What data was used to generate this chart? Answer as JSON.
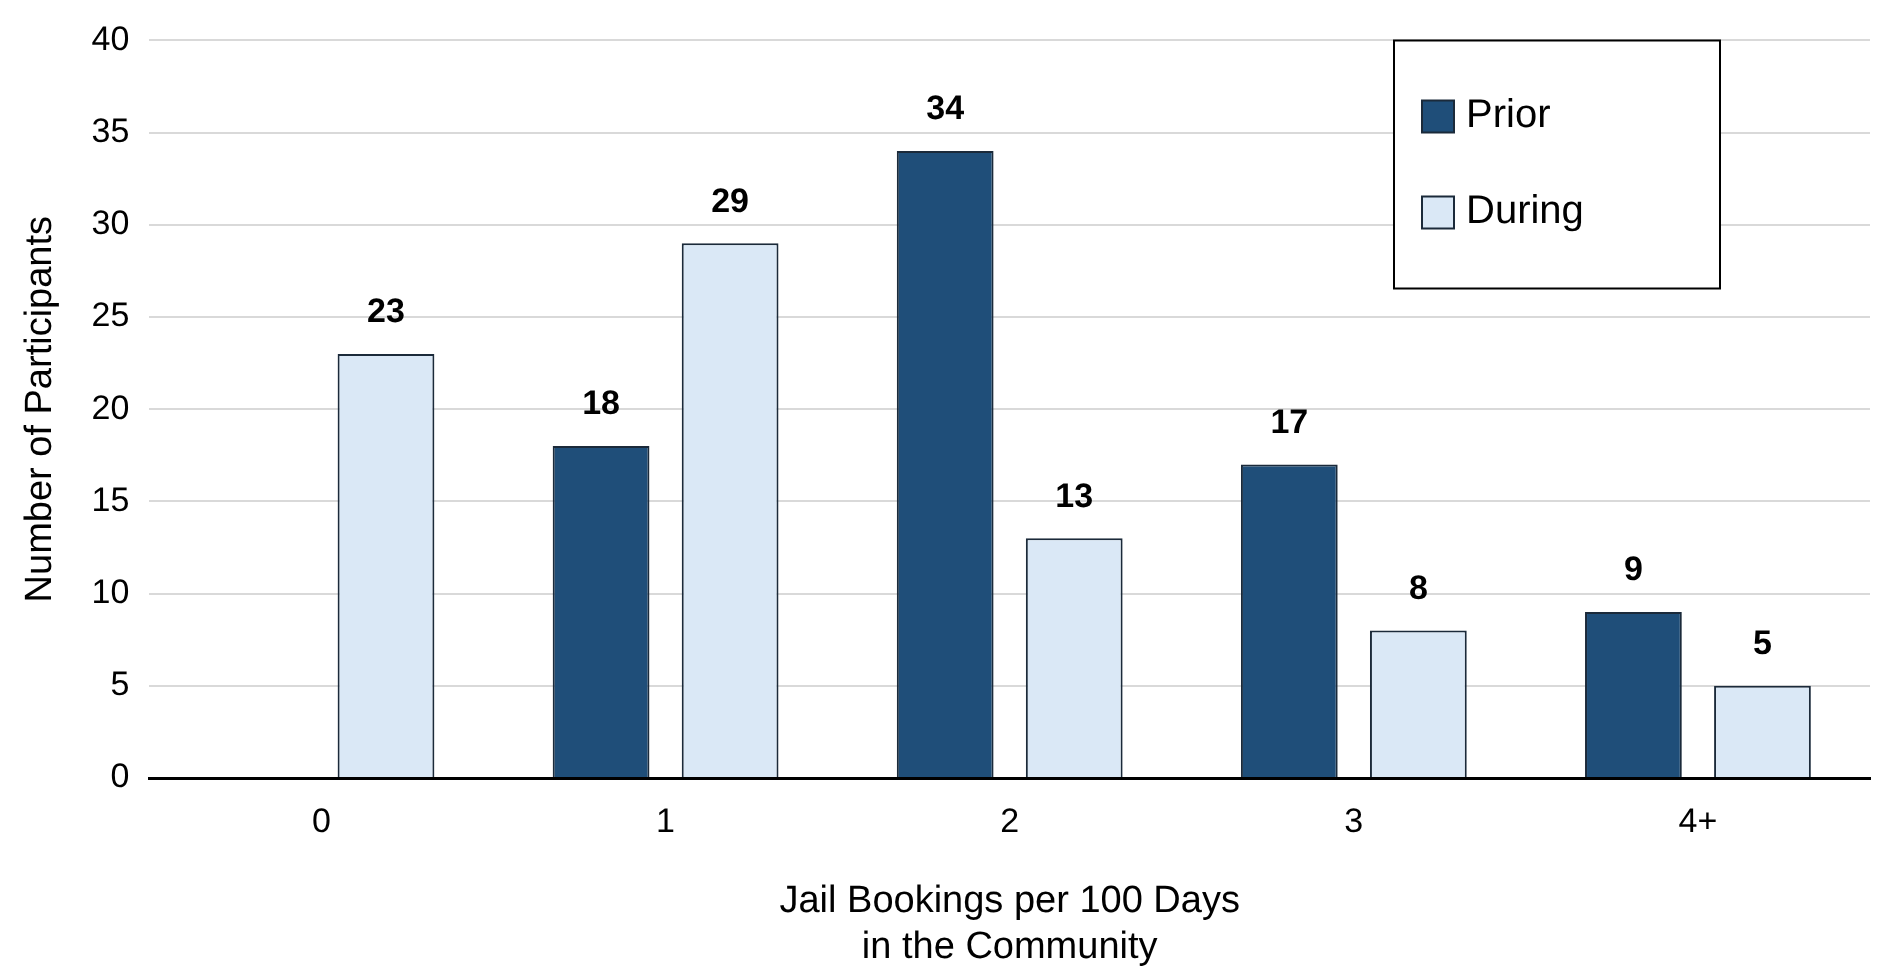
{
  "chart_data": {
    "type": "bar",
    "xlabel": "Jail Bookings per 100 Days\nin the Community",
    "ylabel": "Number of Participants",
    "categories": [
      "0",
      "1",
      "2",
      "3",
      "4+"
    ],
    "series": [
      {
        "name": "Prior",
        "color": "#1f4e79",
        "values": [
          null,
          18,
          34,
          17,
          9
        ]
      },
      {
        "name": "During",
        "color": "#dae8f6",
        "values": [
          23,
          29,
          13,
          8,
          5
        ]
      }
    ],
    "ylim": [
      0,
      40
    ],
    "yticks": [
      0,
      5,
      10,
      15,
      20,
      25,
      30,
      35,
      40
    ],
    "grid": "y",
    "legend": "top right",
    "data_labels": true
  }
}
